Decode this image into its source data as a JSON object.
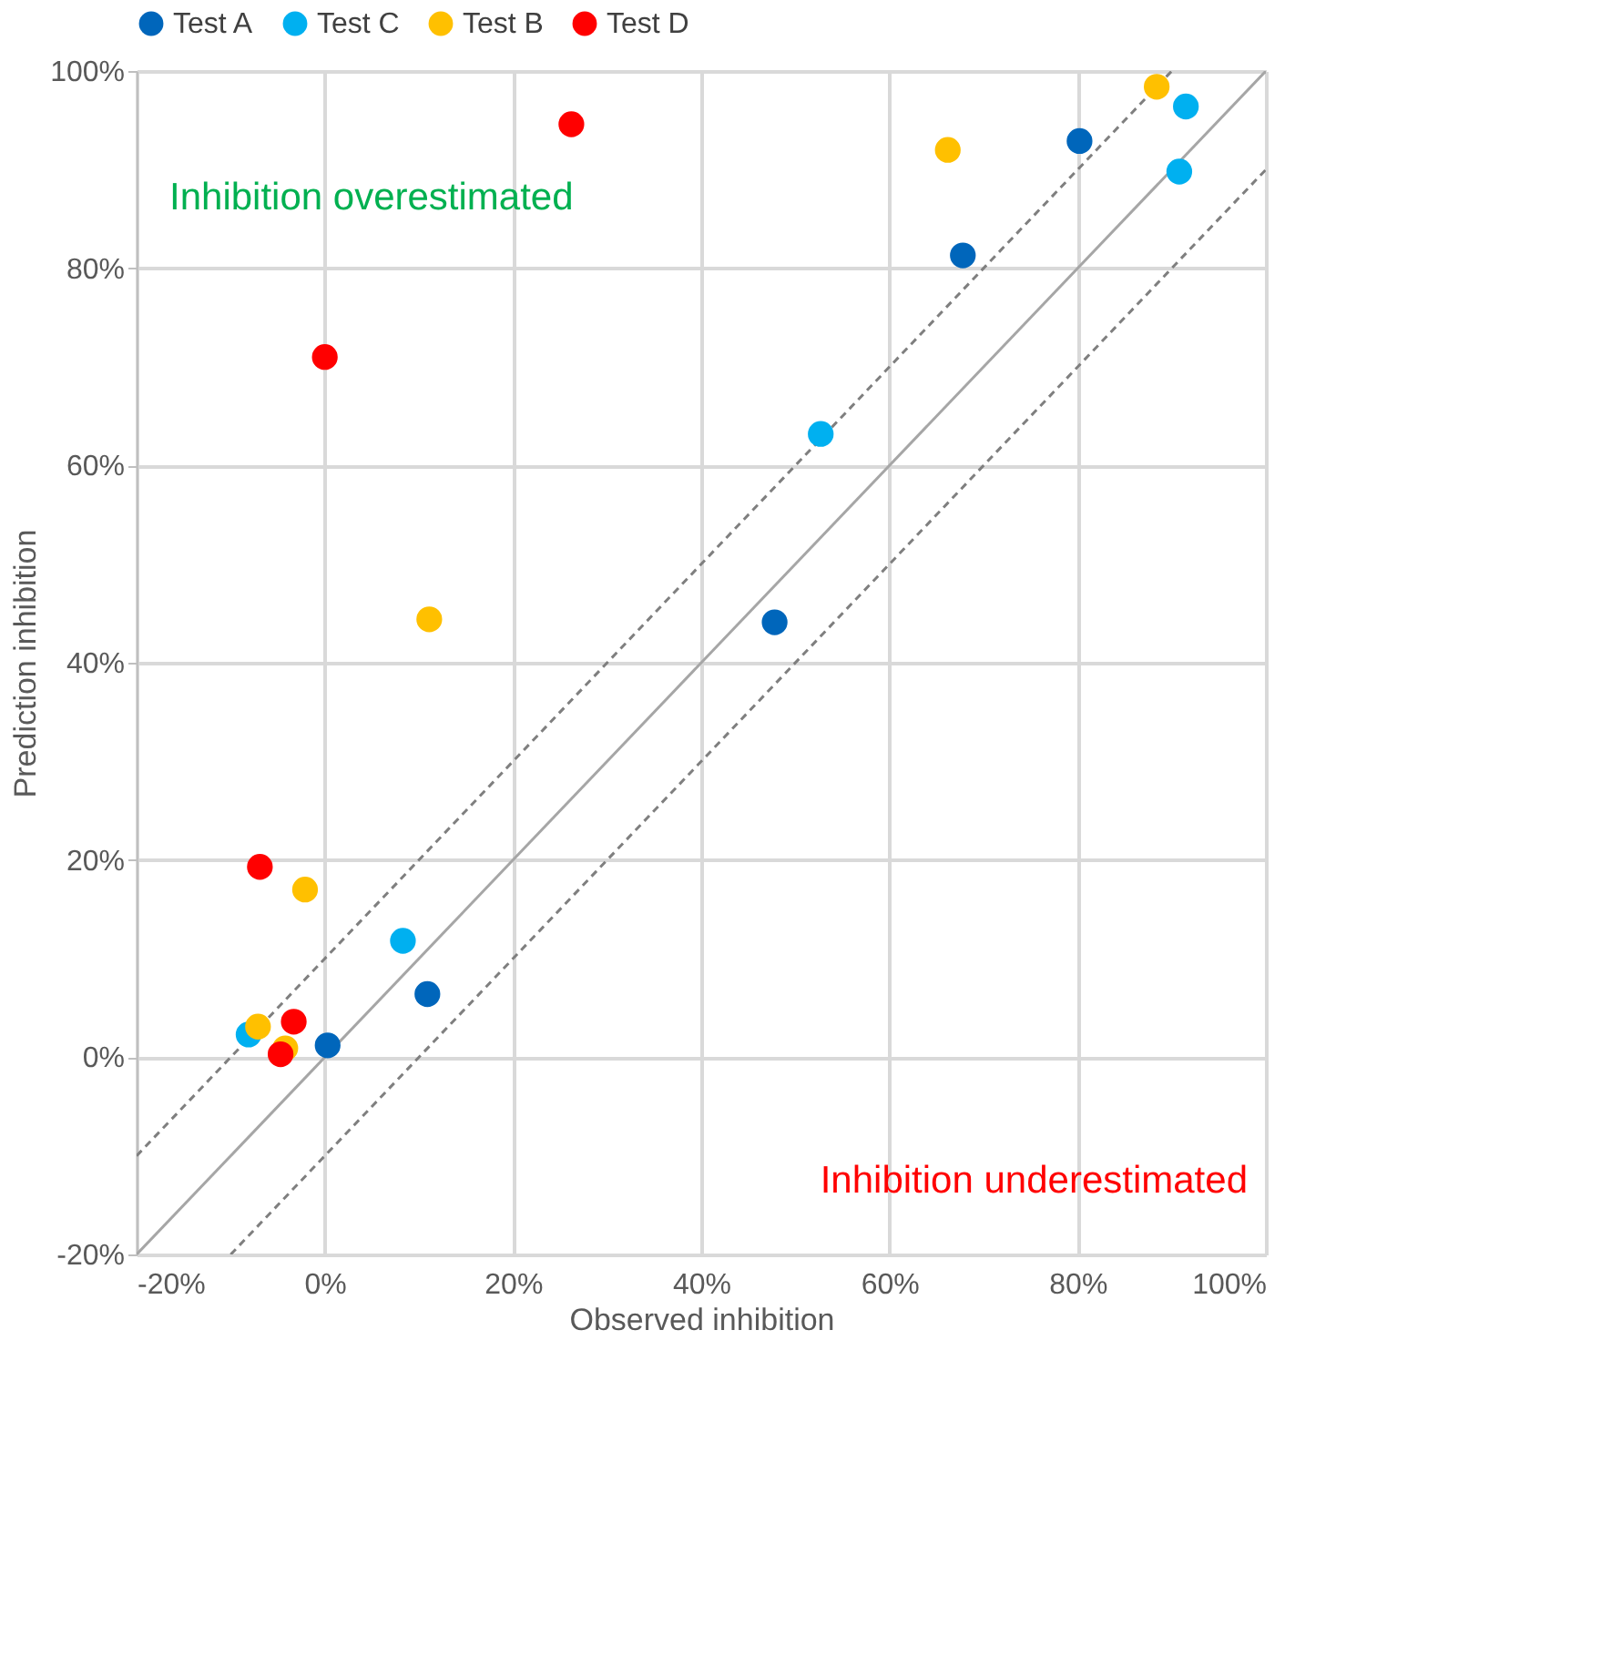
{
  "chart_data": {
    "type": "scatter",
    "xlabel": "Observed inhibition",
    "ylabel": "Prediction inhibition",
    "xlim": [
      -20,
      100
    ],
    "ylim": [
      -20,
      100
    ],
    "xticks": [
      {
        "value": -20,
        "label": "-20%"
      },
      {
        "value": 0,
        "label": "0%"
      },
      {
        "value": 20,
        "label": "20%"
      },
      {
        "value": 40,
        "label": "40%"
      },
      {
        "value": 60,
        "label": "60%"
      },
      {
        "value": 80,
        "label": "80%"
      },
      {
        "value": 100,
        "label": "100%"
      }
    ],
    "yticks": [
      {
        "value": -20,
        "label": "-20%"
      },
      {
        "value": 0,
        "label": "0%"
      },
      {
        "value": 20,
        "label": "20%"
      },
      {
        "value": 40,
        "label": "40%"
      },
      {
        "value": 60,
        "label": "60%"
      },
      {
        "value": 80,
        "label": "80%"
      },
      {
        "value": 100,
        "label": "100%"
      }
    ],
    "grid": true,
    "legend": "top",
    "marker": "circle",
    "annotations": [
      "Inhibition overestimated",
      "Inhibition underestimated"
    ],
    "series": [
      {
        "name": "Test A",
        "color": "#0066bb",
        "x": [
          0.3,
          10.9,
          47.8,
          67.8,
          80.2
        ],
        "values": [
          1.2,
          6.4,
          44.1,
          81.3,
          92.9
        ]
      },
      {
        "name": "Test C",
        "color": "#00b0f0",
        "x": [
          -8.1,
          8.3,
          52.7,
          90.8,
          91.5
        ],
        "values": [
          2.3,
          11.8,
          63.2,
          89.8,
          96.4
        ]
      },
      {
        "name": "Test B",
        "color": "#ffc000",
        "x": [
          -7.1,
          -4.2,
          -2.1,
          11.1,
          66.2,
          88.4
        ],
        "values": [
          3.1,
          0.9,
          17.0,
          44.4,
          92.0,
          98.4
        ]
      },
      {
        "name": "Test D",
        "color": "#ff0000",
        "x": [
          -6.9,
          -3.3,
          -4.7,
          0.0,
          26.2
        ],
        "values": [
          19.3,
          3.6,
          0.3,
          71.0,
          94.6
        ]
      },
      {
        "type": "line",
        "color": "#a6a6a6",
        "line_style": "solid",
        "marker": "none",
        "x": [
          -20,
          100
        ],
        "values": [
          -20,
          100
        ]
      },
      {
        "type": "line",
        "color": "#7f7f7f",
        "line_style": "dashed",
        "marker": "none",
        "x": [
          -20,
          90
        ],
        "values": [
          -10,
          100
        ]
      },
      {
        "type": "line",
        "color": "#7f7f7f",
        "line_style": "dashed",
        "marker": "none",
        "x": [
          -10,
          100
        ],
        "values": [
          -20,
          90
        ]
      }
    ]
  }
}
